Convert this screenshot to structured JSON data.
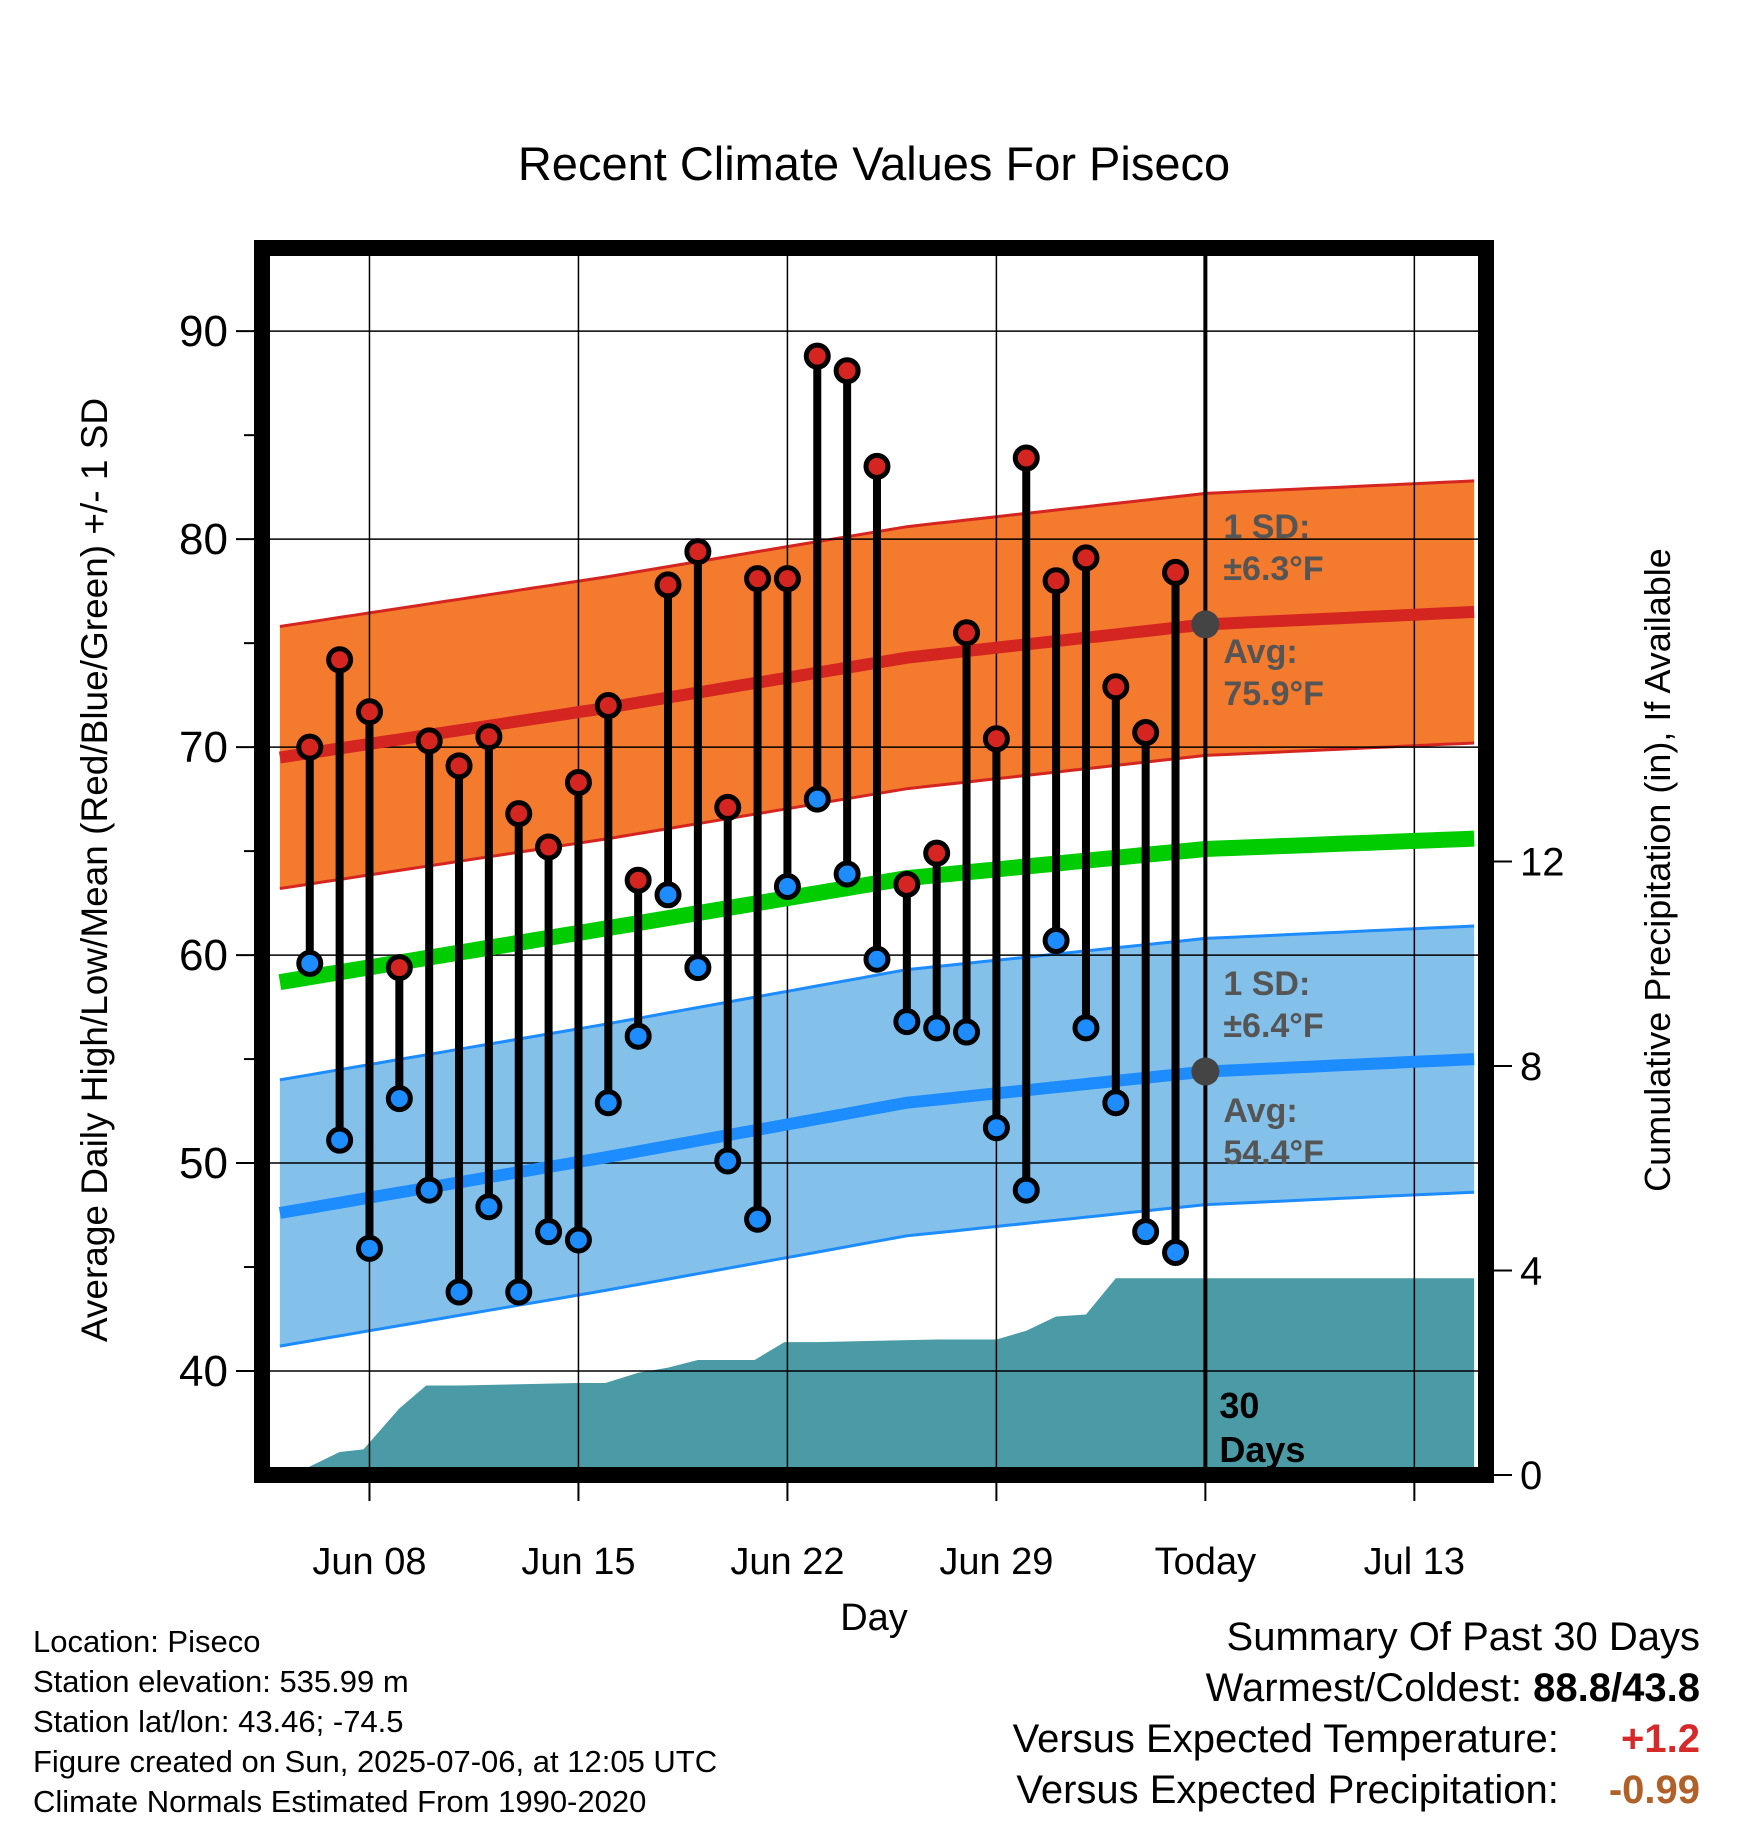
{
  "chart_data": {
    "type": "line",
    "title": "Recent Climate Values For Piseco",
    "xlabel": "Day",
    "ylabel_left": "Average Daily High/Low/Mean (Red/Blue/Green) +/- 1 SD",
    "ylabel_right": "Cumulative Precipitation (in), If Available",
    "ylim": [
      35,
      94
    ],
    "y2lim": [
      0,
      24
    ],
    "xlim_days": [
      -31.6,
      9.4
    ],
    "x_ticks": [
      {
        "day": -28,
        "label": "Jun 08"
      },
      {
        "day": -21,
        "label": "Jun 15"
      },
      {
        "day": -14,
        "label": "Jun 22"
      },
      {
        "day": -7,
        "label": "Jun 29"
      },
      {
        "day": 0,
        "label": "Today"
      },
      {
        "day": 7,
        "label": "Jul 13"
      }
    ],
    "y_ticks": [
      40,
      50,
      60,
      70,
      80,
      90
    ],
    "y2_ticks": [
      0,
      4,
      8,
      12
    ],
    "today_marker_label": [
      "30",
      "Days"
    ],
    "observed_highs": [
      70.0,
      74.2,
      71.7,
      59.4,
      70.3,
      69.1,
      70.5,
      66.8,
      65.2,
      68.3,
      72.0,
      63.6,
      77.8,
      79.4,
      67.1,
      78.1,
      78.1,
      88.8,
      88.1,
      83.5,
      63.4,
      64.9,
      75.5,
      70.4,
      83.9,
      78.0,
      79.1,
      72.9,
      70.7,
      78.4
    ],
    "observed_lows": [
      59.6,
      51.1,
      45.9,
      53.1,
      48.7,
      43.8,
      47.9,
      43.8,
      46.7,
      46.3,
      52.9,
      56.1,
      62.9,
      59.4,
      50.1,
      47.3,
      63.3,
      67.5,
      63.9,
      59.8,
      56.8,
      56.5,
      56.3,
      51.7,
      48.7,
      60.7,
      56.5,
      52.9,
      46.7,
      45.7
    ],
    "normal_series": [
      {
        "name": "Avg high",
        "color": "#d42520",
        "x_days": [
          -31,
          -20,
          -10,
          0,
          9
        ],
        "values": [
          69.5,
          71.9,
          74.3,
          75.9,
          76.5
        ]
      },
      {
        "name": "Avg mean",
        "color": "#00cc00",
        "x_days": [
          -31,
          -20,
          -10,
          0,
          9
        ],
        "values": [
          58.7,
          61.3,
          63.7,
          65.1,
          65.6
        ]
      },
      {
        "name": "Avg low",
        "color": "#1c8cff",
        "x_days": [
          -31,
          -20,
          -10,
          0,
          9
        ],
        "values": [
          47.6,
          50.3,
          52.9,
          54.4,
          55.0
        ]
      }
    ],
    "sd_bands": [
      {
        "name": "High +/- 1 SD",
        "color": "#f47a2e",
        "sd": 6.3
      },
      {
        "name": "Low +/- 1 SD",
        "color": "#84c1ea",
        "sd": 6.4
      }
    ],
    "precip_series": {
      "color": "#4a9ba5",
      "x_days": [
        -31,
        -30.4,
        -29,
        -28.2,
        -27,
        -26.1,
        -25,
        -21,
        -20.1,
        -19,
        -18,
        -17,
        -15.1,
        -14.1,
        -13,
        -9,
        -8,
        -7,
        -6,
        -5,
        -4,
        -3,
        -2,
        -1,
        0,
        9
      ],
      "values": [
        0,
        0.05,
        0.45,
        0.5,
        1.3,
        1.75,
        1.75,
        1.8,
        1.8,
        2.0,
        2.1,
        2.25,
        2.25,
        2.6,
        2.6,
        2.65,
        2.65,
        2.65,
        2.82,
        3.1,
        3.14,
        3.85,
        3.85,
        3.85,
        3.85,
        3.85
      ]
    },
    "annotations": {
      "high_sd_label": "1 SD:",
      "high_sd_value": "±6.3°F",
      "high_avg_label": "Avg:",
      "high_avg_value": "75.9°F",
      "low_sd_label": "1 SD:",
      "low_sd_value": "±6.4°F",
      "low_avg_label": "Avg:",
      "low_avg_value": "54.4°F"
    },
    "grid": true
  },
  "footer": {
    "location": "Location: Piseco",
    "elevation": "Station elevation: 535.99 m",
    "latlon": "Station lat/lon: 43.46; -74.5",
    "created": "Figure created on Sun, 2025-07-06, at 12:05 UTC",
    "normals": "Climate Normals Estimated From 1990-2020"
  },
  "summary": {
    "title": "Summary Of Past 30 Days",
    "warm_cold_label": "Warmest/Coldest:",
    "warm_cold_value": "88.8/43.8",
    "temp_label": "Versus Expected Temperature:",
    "temp_value": "+1.2",
    "precip_label": "Versus Expected Precipitation:",
    "precip_value": "-0.99"
  },
  "colors": {
    "high_marker": "#d42520",
    "low_marker": "#1c8cff",
    "sd_high_fill": "#f47a2e",
    "sd_low_fill": "#84c1ea",
    "precip_fill": "#4a9ba5",
    "annotation_text": "#555555",
    "warm_value": "#d62a2a",
    "precip_value": "#b0612a"
  }
}
